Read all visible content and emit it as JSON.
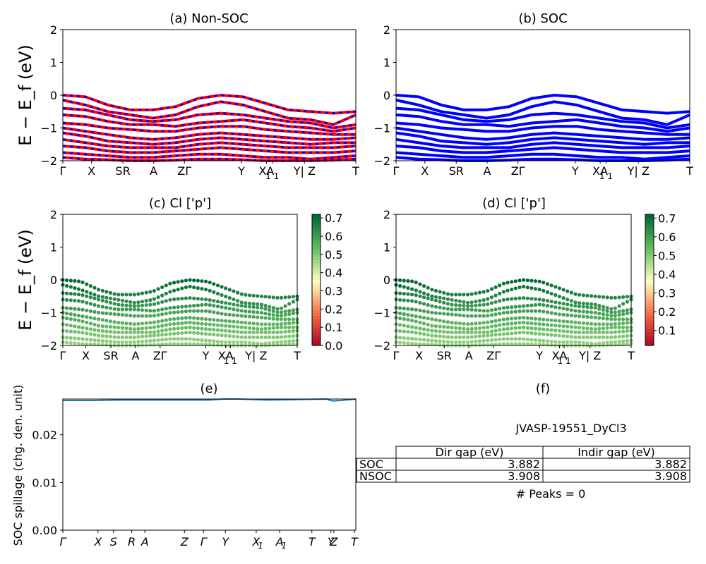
{
  "figure": {
    "panels": [
      {
        "title": "(a) Non-SOC",
        "ylabel": "E − E_f (eV)"
      },
      {
        "title": "(b) SOC"
      },
      {
        "title": "(c)  Cl ['p']",
        "ylabel": "E − E_f (eV)"
      },
      {
        "title": "(d) Cl ['p']"
      },
      {
        "title": "(e)",
        "ylabel": "SOC spillage (chg. den. unit)"
      },
      {
        "title": "(f)"
      }
    ]
  },
  "bands_axes": {
    "ylim": [
      -2,
      2
    ],
    "yticks": [
      "2",
      "1",
      "0",
      "−1",
      "−2"
    ],
    "kticks": [
      {
        "label": "Γ",
        "pos": 0.0
      },
      {
        "label": "X",
        "pos": 0.098
      },
      {
        "label": "SR",
        "pos": 0.205
      },
      {
        "label": "A",
        "pos": 0.31
      },
      {
        "label": "ZΓ",
        "pos": 0.415
      },
      {
        "label": "Y",
        "pos": 0.61
      },
      {
        "label": "XA",
        "pos": 0.695
      },
      {
        "label": "1 1",
        "pos": 0.715
      },
      {
        "label": "Y| Z",
        "pos": 0.825
      },
      {
        "label": "T",
        "pos": 1.0
      }
    ]
  },
  "colorbars": [
    {
      "ticks": [
        "0.7",
        "0.6",
        "0.5",
        "0.4",
        "0.3",
        "0.2",
        "0.1",
        "0.0"
      ],
      "range": [
        0.0,
        0.72
      ]
    },
    {
      "ticks": [
        "0.7",
        "0.6",
        "0.5",
        "0.4",
        "0.3",
        "0.2",
        "0.1"
      ],
      "range": [
        0.02,
        0.72
      ]
    }
  ],
  "chart_data": [
    {
      "panel": "a",
      "type": "line",
      "ylim": [
        -2,
        2
      ],
      "series": [
        {
          "color": "#ff0000",
          "style": "solid"
        },
        {
          "color": "#0000ff",
          "style": "dashed"
        }
      ],
      "bands": [
        [
          0.0,
          -0.05,
          -0.3,
          -0.45,
          -0.45,
          -0.35,
          -0.1,
          0.0,
          -0.05,
          -0.25,
          -0.45,
          -0.5,
          -0.55,
          -0.5
        ],
        [
          -0.15,
          -0.3,
          -0.5,
          -0.6,
          -0.7,
          -0.6,
          -0.35,
          -0.2,
          -0.3,
          -0.5,
          -0.7,
          -0.75,
          -0.9,
          -0.6
        ],
        [
          -0.4,
          -0.45,
          -0.6,
          -0.75,
          -0.8,
          -0.75,
          -0.6,
          -0.55,
          -0.6,
          -0.7,
          -0.8,
          -0.85,
          -1.0,
          -0.9
        ],
        [
          -0.6,
          -0.65,
          -0.8,
          -0.9,
          -0.9,
          -0.95,
          -0.85,
          -0.8,
          -0.75,
          -0.85,
          -0.95,
          -1.0,
          -1.1,
          -1.0
        ],
        [
          -0.85,
          -0.9,
          -1.0,
          -1.05,
          -1.1,
          -1.1,
          -1.0,
          -0.95,
          -0.95,
          -1.05,
          -1.1,
          -1.15,
          -1.2,
          -1.2
        ],
        [
          -1.0,
          -1.1,
          -1.2,
          -1.3,
          -1.35,
          -1.3,
          -1.2,
          -1.15,
          -1.2,
          -1.25,
          -1.3,
          -1.35,
          -1.35,
          -1.3
        ],
        [
          -1.15,
          -1.25,
          -1.4,
          -1.45,
          -1.5,
          -1.45,
          -1.35,
          -1.3,
          -1.35,
          -1.4,
          -1.45,
          -1.5,
          -1.45,
          -1.45
        ],
        [
          -1.35,
          -1.45,
          -1.55,
          -1.6,
          -1.6,
          -1.6,
          -1.5,
          -1.45,
          -1.5,
          -1.55,
          -1.6,
          -1.6,
          -1.6,
          -1.55
        ],
        [
          -1.55,
          -1.6,
          -1.7,
          -1.75,
          -1.75,
          -1.7,
          -1.65,
          -1.6,
          -1.65,
          -1.7,
          -1.75,
          -1.75,
          -1.75,
          -1.7
        ],
        [
          -1.75,
          -1.8,
          -1.85,
          -1.9,
          -1.9,
          -1.85,
          -1.8,
          -1.8,
          -1.85,
          -1.9,
          -1.9,
          -1.95,
          -1.9,
          -1.85
        ],
        [
          -1.9,
          -1.95,
          -1.97,
          -2.0,
          -2.0,
          -1.98,
          -1.95,
          -1.95,
          -1.97,
          -2.0,
          -2.0,
          -2.0,
          -1.98,
          -1.95
        ]
      ]
    },
    {
      "panel": "b",
      "type": "line",
      "ylim": [
        -2,
        2
      ],
      "series": [
        {
          "color": "#0000ff",
          "style": "solid"
        }
      ],
      "same_bands_as": "a"
    },
    {
      "panel": "c",
      "type": "scatter",
      "ylim": [
        -2,
        2
      ],
      "colormap": "RdYlGn",
      "color_range": [
        0.0,
        0.72
      ],
      "same_bands_as": "a"
    },
    {
      "panel": "d",
      "type": "scatter",
      "ylim": [
        -2,
        2
      ],
      "colormap": "RdYlGn",
      "color_range": [
        0.02,
        0.72
      ],
      "same_bands_as": "a"
    },
    {
      "panel": "e",
      "type": "line",
      "ylim": [
        0.0,
        0.0275
      ],
      "yticks": [
        "0.02",
        "0.01",
        "0.00"
      ],
      "xticks": [
        {
          "label": "Γ",
          "pos": 0.0
        },
        {
          "label": "X",
          "pos": 0.12
        },
        {
          "label": "S",
          "pos": 0.173
        },
        {
          "label": "R",
          "pos": 0.235
        },
        {
          "label": "A",
          "pos": 0.28
        },
        {
          "label": "Z",
          "pos": 0.415
        },
        {
          "label": "Γ",
          "pos": 0.48
        },
        {
          "label": "Y",
          "pos": 0.555
        },
        {
          "label": "X",
          "pos": 0.66
        },
        {
          "label": "1",
          "pos": 0.675
        },
        {
          "label": "A",
          "pos": 0.74
        },
        {
          "label": "1",
          "pos": 0.755
        },
        {
          "label": "T",
          "pos": 0.85
        },
        {
          "label": "Y",
          "pos": 0.915
        },
        {
          "label": "Z",
          "pos": 0.925
        },
        {
          "label": "T",
          "pos": 0.995
        }
      ],
      "x": [
        0.0,
        0.1,
        0.2,
        0.3,
        0.4,
        0.5,
        0.55,
        0.6,
        0.7,
        0.8,
        0.9,
        0.92,
        0.95,
        1.0
      ],
      "values": [
        0.0272,
        0.0272,
        0.0273,
        0.0273,
        0.0273,
        0.0273,
        0.0275,
        0.0275,
        0.0273,
        0.0274,
        0.0275,
        0.0271,
        0.0272,
        0.0275
      ],
      "color": "#1f77b4"
    }
  ],
  "info": {
    "title": "JVASP-19551_DyCl3",
    "table": {
      "headers": [
        "",
        "Dir gap (eV)",
        "Indir gap (eV)"
      ],
      "rows": [
        [
          "SOC",
          "3.882",
          "3.882"
        ],
        [
          "NSOC",
          "3.908",
          "3.908"
        ]
      ]
    },
    "peaks": "# Peaks = 0"
  }
}
